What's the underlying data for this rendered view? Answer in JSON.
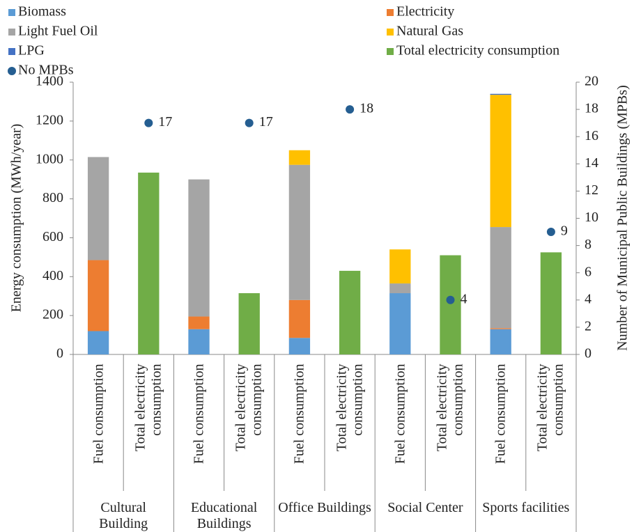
{
  "chart_data": {
    "type": "bar",
    "stacked": true,
    "ylabel": "Energy consumption (MWh/year)",
    "y2label": "Number of Municipal Public Buildings (MPBs)",
    "categories": [
      "Fuel consumption",
      "Total electricity consumption",
      "Fuel consumption",
      "Total electricity consumption",
      "Fuel consumption",
      "Total electricity consumption",
      "Fuel consumption",
      "Total electricity consumption",
      "Fuel consumption",
      "Total electricity consumption"
    ],
    "groups": [
      "Cultural Building",
      "Educational Buildings",
      "Office Buildings",
      "Social Center",
      "Sports facilities"
    ],
    "series": [
      {
        "name": "Biomass",
        "color": "#5b9bd5",
        "values": [
          120,
          null,
          130,
          null,
          85,
          null,
          315,
          null,
          130,
          null
        ]
      },
      {
        "name": "Electricity",
        "color": "#ed7d31",
        "values": [
          365,
          null,
          65,
          null,
          195,
          null,
          0,
          null,
          5,
          null
        ]
      },
      {
        "name": "Light Fuel Oil",
        "color": "#a5a5a5",
        "values": [
          530,
          null,
          705,
          null,
          695,
          null,
          50,
          null,
          520,
          null
        ]
      },
      {
        "name": "Natural Gas",
        "color": "#ffc000",
        "values": [
          0,
          null,
          0,
          null,
          75,
          null,
          175,
          null,
          680,
          null
        ]
      },
      {
        "name": "LPG",
        "color": "#4472c4",
        "values": [
          0,
          null,
          0,
          null,
          0,
          null,
          0,
          null,
          5,
          null
        ]
      },
      {
        "name": "Total electricity consumption",
        "color": "#70ad47",
        "values": [
          null,
          935,
          null,
          315,
          null,
          430,
          null,
          510,
          null,
          525
        ]
      },
      {
        "name": "No MPBs",
        "color": "#255e91",
        "type": "scatter",
        "axis": "y2",
        "values": [
          null,
          17,
          null,
          17,
          null,
          18,
          null,
          4,
          null,
          9
        ]
      }
    ],
    "ylim": [
      0,
      1400
    ],
    "yticks": [
      0,
      200,
      400,
      600,
      800,
      1000,
      1200,
      1400
    ],
    "y2lim": [
      0,
      20
    ],
    "y2ticks": [
      0,
      2,
      4,
      6,
      8,
      10,
      12,
      14,
      16,
      18,
      20
    ],
    "grid": false,
    "legend": "top"
  }
}
